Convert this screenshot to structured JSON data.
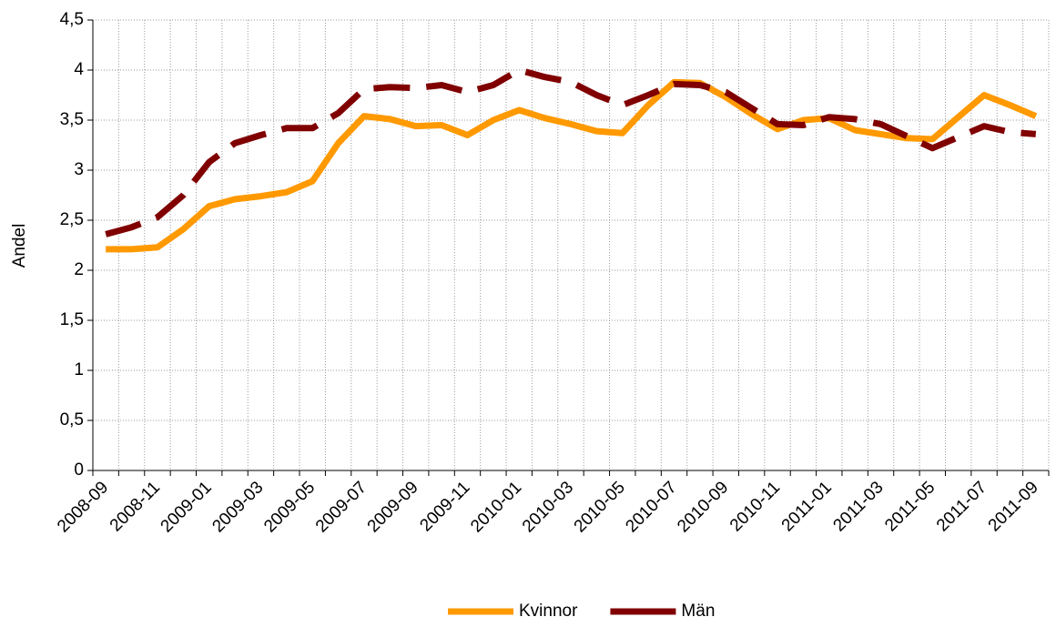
{
  "chart_data": {
    "type": "line",
    "y_label": "Andel",
    "categories": [
      "2008-09",
      null,
      "2008-11",
      null,
      "2009-01",
      null,
      "2009-03",
      null,
      "2009-05",
      null,
      "2009-07",
      null,
      "2009-09",
      null,
      "2009-11",
      null,
      "2010-01",
      null,
      "2010-03",
      null,
      "2010-05",
      null,
      "2010-07",
      null,
      "2010-09",
      null,
      "2010-11",
      null,
      "2011-01",
      null,
      "2011-03",
      null,
      "2011-05",
      null,
      "2011-07",
      null,
      "2011-09"
    ],
    "series": [
      {
        "name": "Kvinnor",
        "color": "#ff9900",
        "dashed": false,
        "values": [
          2.21,
          2.21,
          2.23,
          2.41,
          2.64,
          2.71,
          2.74,
          2.78,
          2.89,
          3.27,
          3.54,
          3.51,
          3.44,
          3.45,
          3.35,
          3.5,
          3.6,
          3.52,
          3.46,
          3.39,
          3.37,
          3.65,
          3.88,
          3.87,
          3.73,
          3.56,
          3.41,
          3.5,
          3.52,
          3.4,
          3.36,
          3.32,
          3.31,
          3.53,
          3.75,
          3.65,
          3.54
        ]
      },
      {
        "name": "Män",
        "color": "#800000",
        "dashed": true,
        "values": [
          2.36,
          2.43,
          2.53,
          2.75,
          3.08,
          3.27,
          3.35,
          3.42,
          3.42,
          3.57,
          3.81,
          3.83,
          3.82,
          3.85,
          3.78,
          3.85,
          4.0,
          3.93,
          3.88,
          3.75,
          3.65,
          3.75,
          3.86,
          3.85,
          3.78,
          3.62,
          3.46,
          3.45,
          3.53,
          3.51,
          3.46,
          3.34,
          3.22,
          3.33,
          3.44,
          3.38,
          3.36
        ]
      }
    ],
    "ylim": [
      0,
      4.5
    ],
    "yticks": [
      0,
      {
        "value": 0.5,
        "label": "0,5"
      },
      1,
      {
        "value": 1.5,
        "label": "1,5"
      },
      2,
      {
        "value": 2.5,
        "label": "2,5"
      },
      3,
      {
        "value": 3.5,
        "label": "3,5"
      },
      4,
      {
        "value": 4.5,
        "label": "4,5"
      }
    ],
    "grid": true,
    "legend": "bottom"
  }
}
